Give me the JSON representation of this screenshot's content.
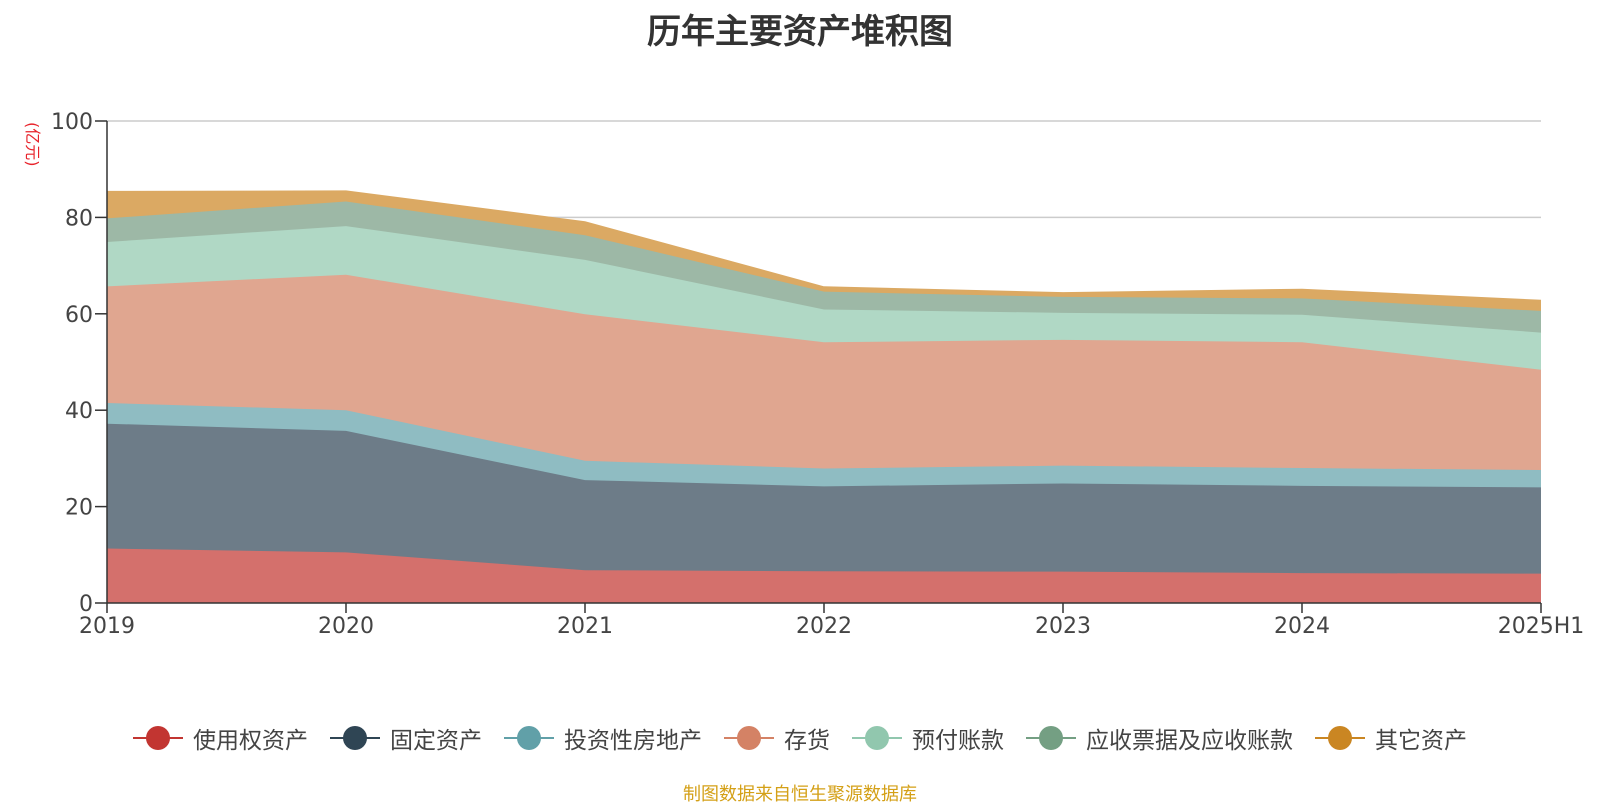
{
  "chart_data": {
    "type": "area",
    "stacked": true,
    "title": "历年主要资产堆积图",
    "unit_label": "(亿元)",
    "x": [
      "2019",
      "2020",
      "2021",
      "2022",
      "2023",
      "2024",
      "2025H1"
    ],
    "ylim": [
      0,
      100
    ],
    "yticks": [
      "0",
      "20",
      "40",
      "60",
      "80",
      "100"
    ],
    "grid": true,
    "legend_position": "bottom",
    "series": [
      {
        "name": "使用权资产",
        "color": "#c23531",
        "fill": "#d4706c",
        "values": [
          11.3,
          10.5,
          6.8,
          6.6,
          6.5,
          6.2,
          6.1
        ]
      },
      {
        "name": "固定资产",
        "color": "#2f4554",
        "fill": "#6d7c88",
        "values": [
          25.9,
          25.2,
          18.7,
          17.6,
          18.3,
          18.1,
          17.9
        ]
      },
      {
        "name": "投资性房地产",
        "color": "#61a0a8",
        "fill": "#8fbcc2",
        "values": [
          4.3,
          4.3,
          4.0,
          3.7,
          3.7,
          3.7,
          3.6
        ]
      },
      {
        "name": "存货",
        "color": "#d48265",
        "fill": "#e0a690",
        "values": [
          24.2,
          28.1,
          30.4,
          26.2,
          26.1,
          26.1,
          20.8
        ]
      },
      {
        "name": "预付账款",
        "color": "#91c7ae",
        "fill": "#b0d8c5",
        "values": [
          9.2,
          10.1,
          11.3,
          6.8,
          5.6,
          5.7,
          7.7
        ]
      },
      {
        "name": "应收票据及应收账款",
        "color": "#749f83",
        "fill": "#9db8a6",
        "values": [
          4.9,
          5.1,
          5.1,
          3.7,
          3.3,
          3.4,
          4.5
        ]
      },
      {
        "name": "其它资产",
        "color": "#ca8622",
        "fill": "#dba963",
        "values": [
          5.6,
          2.2,
          2.8,
          1.0,
          0.9,
          1.9,
          2.2
        ]
      }
    ]
  },
  "source_note": "制图数据来自恒生聚源数据库"
}
